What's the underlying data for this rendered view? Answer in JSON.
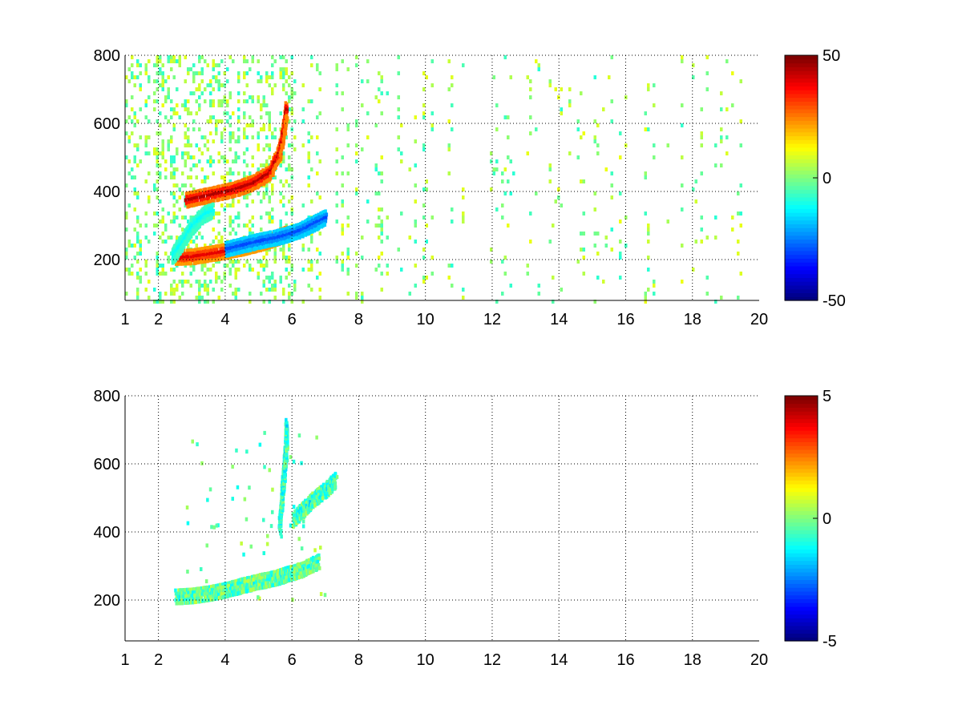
{
  "chart_data": [
    {
      "type": "heatmap",
      "title": "",
      "xlabel": "",
      "ylabel": "",
      "xlim": [
        1,
        20
      ],
      "ylim": [
        80,
        800
      ],
      "xticks": [
        1,
        2,
        4,
        6,
        8,
        10,
        12,
        14,
        16,
        18,
        20
      ],
      "yticks": [
        200,
        400,
        600,
        800
      ],
      "grid": true,
      "colormap": "jet",
      "colorbar": {
        "min": -50,
        "max": 50,
        "ticks": [
          50,
          0,
          -50
        ]
      },
      "features": [
        {
          "label": "lower branch",
          "points": [
            [
              2.5,
              212
            ],
            [
              3,
              214
            ],
            [
              3.5,
              222
            ],
            [
              4,
              230
            ],
            [
              4.5,
              240
            ],
            [
              5,
              252
            ],
            [
              5.5,
              268
            ],
            [
              5.8,
              282
            ]
          ],
          "value": 40
        },
        {
          "label": "lower branch negative",
          "points": [
            [
              4,
              236
            ],
            [
              4.5,
              248
            ],
            [
              5,
              260
            ],
            [
              5.5,
              270
            ],
            [
              5.8,
              278
            ],
            [
              6.2,
              290
            ],
            [
              6.6,
              310
            ],
            [
              7,
              330
            ]
          ],
          "value": -30
        },
        {
          "label": "upper hook",
          "points": [
            [
              2.8,
              380
            ],
            [
              3.5,
              395
            ],
            [
              4.2,
              410
            ],
            [
              4.8,
              430
            ],
            [
              5.3,
              460
            ],
            [
              5.6,
              520
            ],
            [
              5.75,
              600
            ],
            [
              5.8,
              650
            ]
          ],
          "value": 45
        },
        {
          "label": "left rising branch",
          "points": [
            [
              2.4,
              215
            ],
            [
              2.6,
              245
            ],
            [
              2.8,
              275
            ],
            [
              3,
              305
            ],
            [
              3.3,
              335
            ],
            [
              3.6,
              350
            ]
          ],
          "value": -12
        }
      ]
    },
    {
      "type": "heatmap",
      "title": "",
      "xlabel": "",
      "ylabel": "",
      "xlim": [
        1,
        20
      ],
      "ylim": [
        80,
        800
      ],
      "xticks": [
        1,
        2,
        4,
        6,
        8,
        10,
        12,
        14,
        16,
        18,
        20
      ],
      "yticks": [
        200,
        400,
        600,
        800
      ],
      "grid": true,
      "colormap": "jet",
      "colorbar": {
        "min": -5,
        "max": 5,
        "ticks": [
          5,
          0,
          -5
        ]
      },
      "features": [
        {
          "label": "lower band",
          "points": [
            [
              2.5,
              215
            ],
            [
              3,
              218
            ],
            [
              3.5,
              225
            ],
            [
              4,
              235
            ],
            [
              4.5,
              248
            ],
            [
              5,
              260
            ],
            [
              5.5,
              270
            ],
            [
              5.8,
              280
            ],
            [
              6.3,
              295
            ],
            [
              6.8,
              320
            ]
          ],
          "value": -0.5
        },
        {
          "label": "vertical streak",
          "points": [
            [
              5.6,
              420
            ],
            [
              5.65,
              480
            ],
            [
              5.7,
              540
            ],
            [
              5.75,
              600
            ],
            [
              5.8,
              660
            ],
            [
              5.8,
              720
            ]
          ],
          "value": -1.2
        },
        {
          "label": "middle cluster",
          "points": [
            [
              6,
              440
            ],
            [
              6.3,
              470
            ],
            [
              6.6,
              500
            ],
            [
              7,
              530
            ],
            [
              7.3,
              560
            ]
          ],
          "value": -0.8
        }
      ]
    }
  ]
}
